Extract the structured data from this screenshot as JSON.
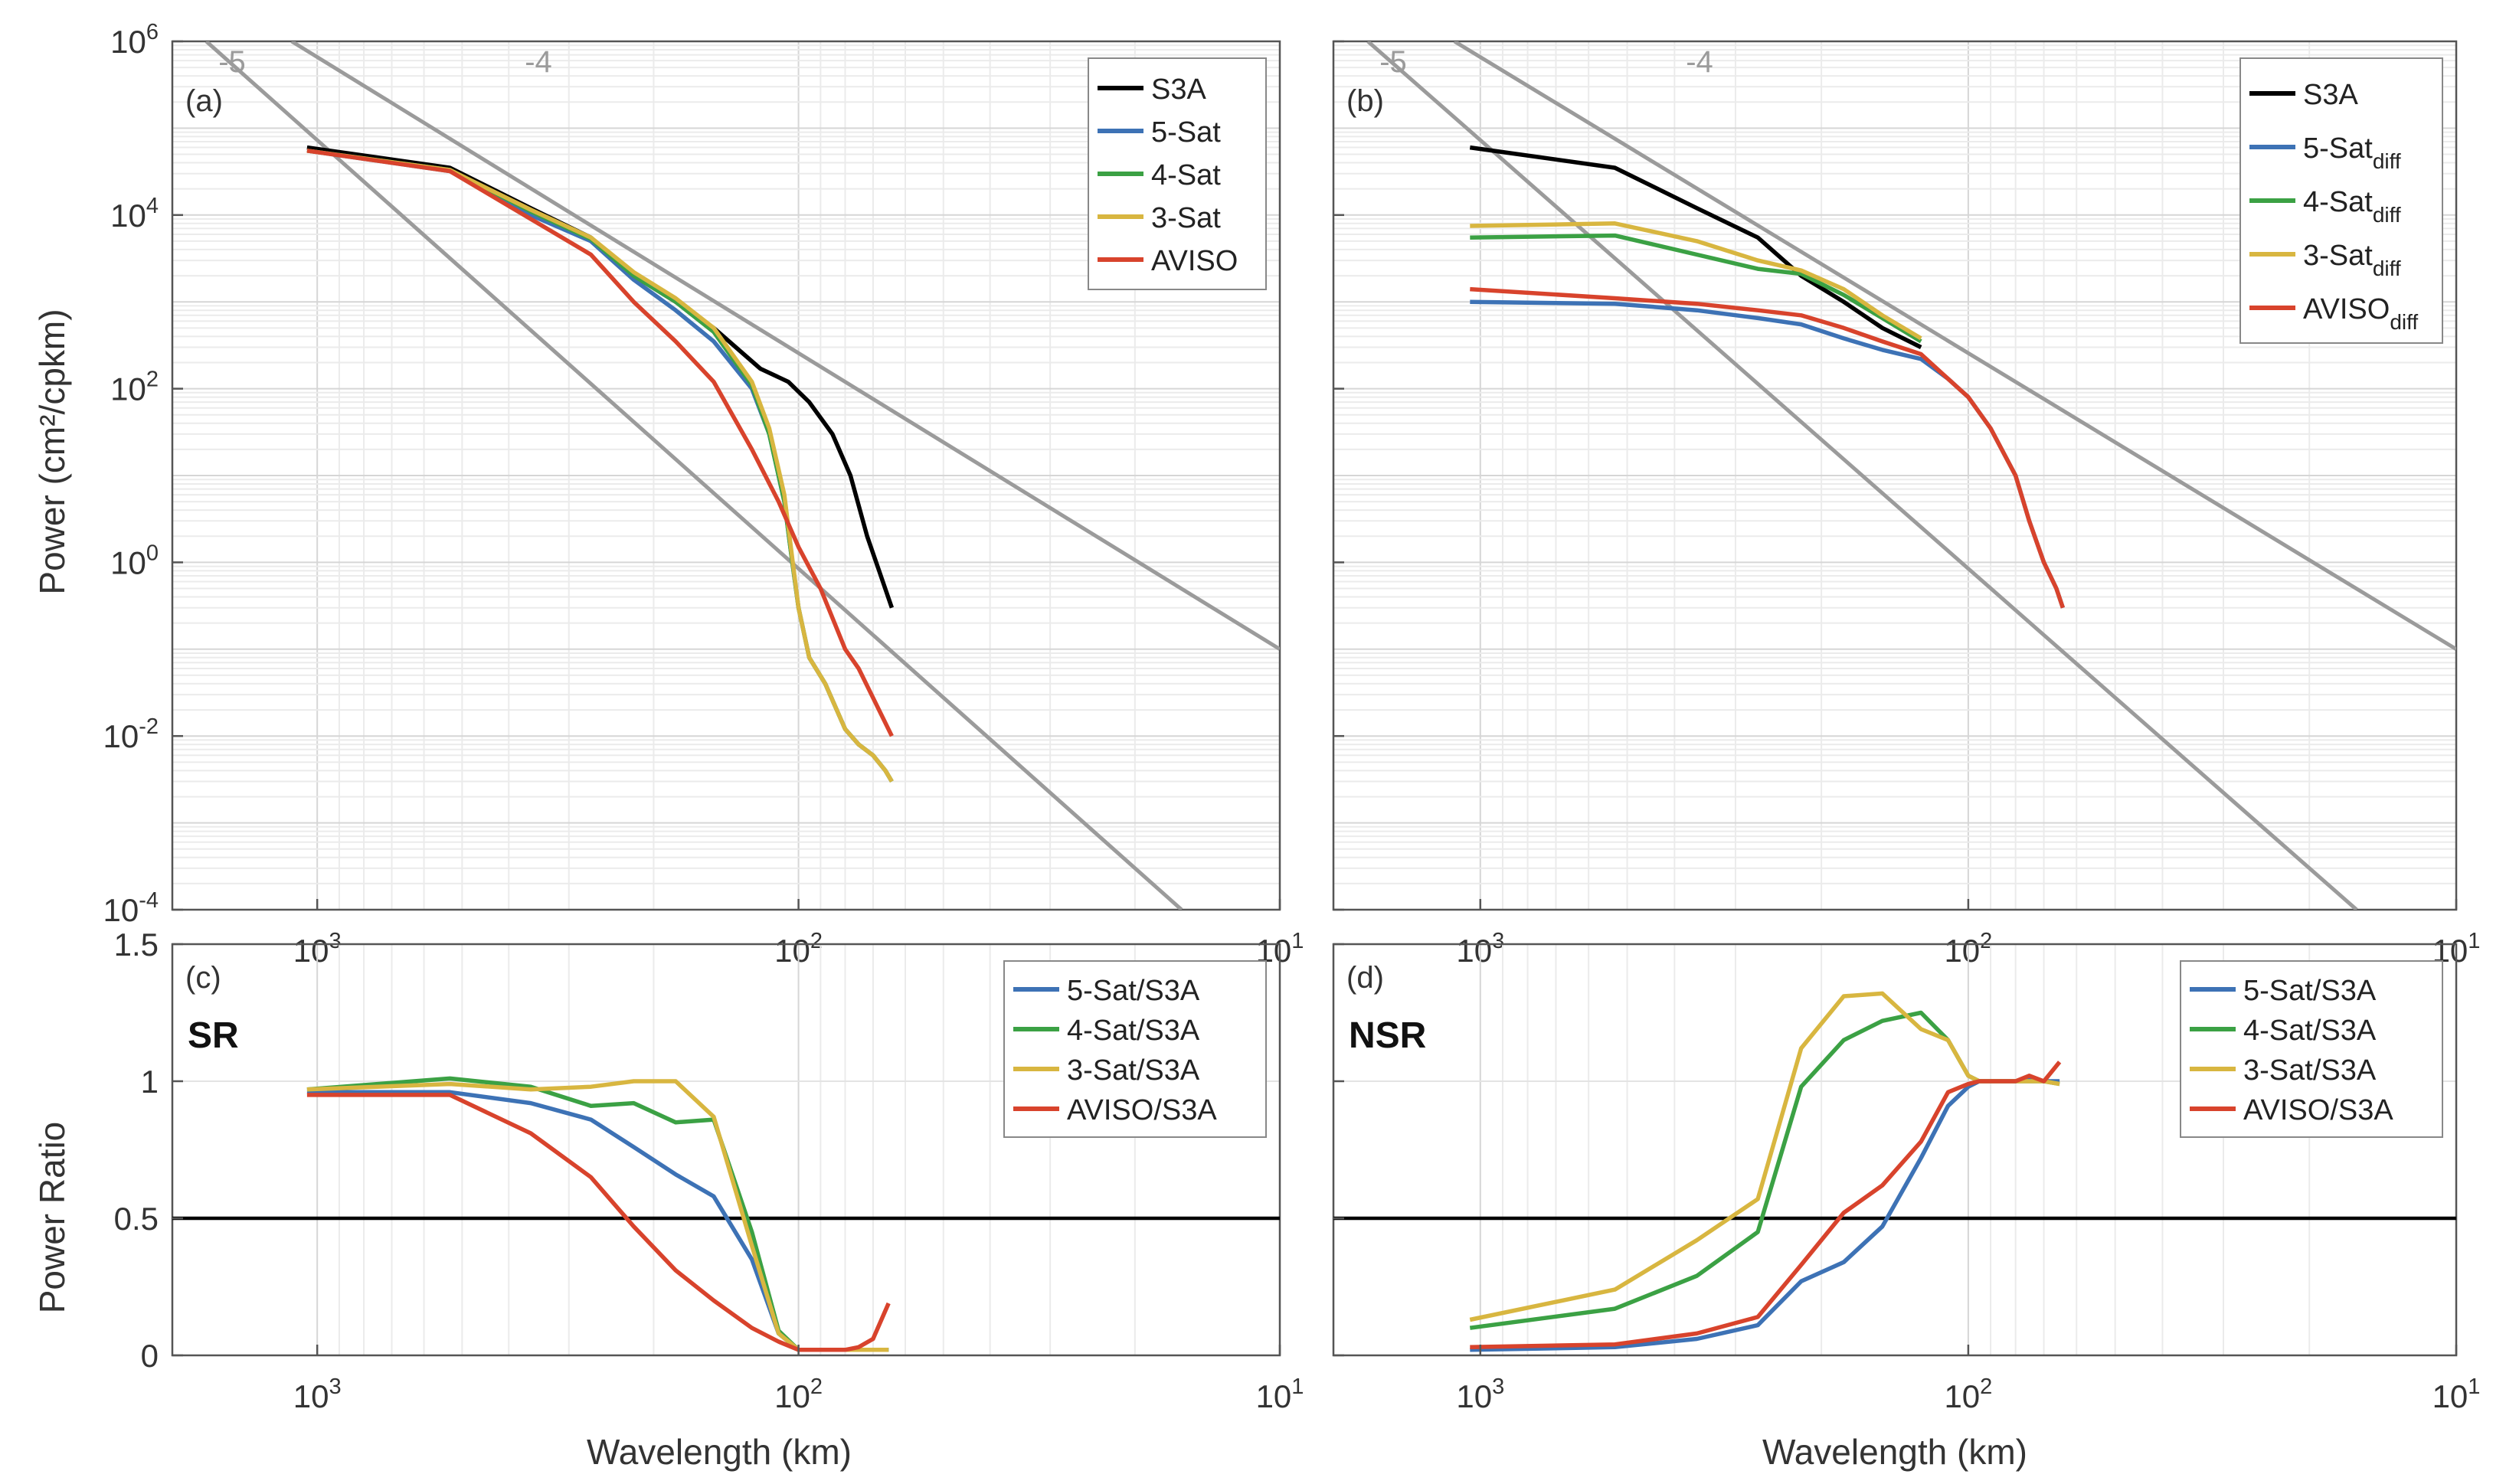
{
  "figure": {
    "ylabel_top": "Power (cm²/cpkm)",
    "ylabel_bottom": "Power Ratio",
    "xlabel": "Wavelength (km)"
  },
  "chart_data": [
    {
      "type": "line",
      "panel": "(a)",
      "title": "",
      "xlabel": "Wavelength (km)",
      "ylabel": "Power (cm^2/cpkm)",
      "xscale": "log-reversed",
      "yscale": "log",
      "xlim": [
        2000,
        10
      ],
      "ylim": [
        0.0001,
        1000000
      ],
      "x_tick_labels": [
        "10^3",
        "10^2",
        "10^1"
      ],
      "y_tick_labels": [
        "10^-4",
        "10^-2",
        "10^0",
        "10^2",
        "10^4",
        "10^6"
      ],
      "grid": true,
      "legend_position": "top-right",
      "reference_lines": [
        {
          "label": "-5",
          "color": "#9b9b9b",
          "points": [
            [
              1700,
              1000000
            ],
            [
              16,
              0.0001
            ]
          ]
        },
        {
          "label": "-4",
          "color": "#9b9b9b",
          "points": [
            [
              1130,
              1000000
            ],
            [
              10,
              0.1
            ]
          ]
        }
      ],
      "series": [
        {
          "name": "S3A",
          "color": "#000000",
          "x": [
            1050,
            530,
            360,
            270,
            220,
            180,
            150,
            135,
            120,
            105,
            95,
            85,
            78,
            72,
            68,
            64
          ],
          "y": [
            60000,
            35000,
            12000,
            5500,
            2000,
            1000,
            500,
            300,
            170,
            120,
            70,
            30,
            10,
            2,
            0.8,
            0.3
          ]
        },
        {
          "name": "5-Sat",
          "color": "#3d72b5",
          "x": [
            1050,
            530,
            360,
            270,
            220,
            180,
            150,
            125,
            115,
            107,
            103,
            100,
            95,
            88,
            80,
            75,
            70,
            66,
            64
          ],
          "y": [
            55000,
            32000,
            10000,
            5000,
            1800,
            800,
            350,
            100,
            30,
            5,
            1,
            0.3,
            0.08,
            0.04,
            0.012,
            0.008,
            0.006,
            0.004,
            0.003
          ]
        },
        {
          "name": "4-Sat",
          "color": "#3ba144",
          "x": [
            1050,
            530,
            360,
            270,
            220,
            180,
            150,
            125,
            115,
            107,
            103,
            100,
            95,
            88,
            80,
            75,
            70,
            66,
            64
          ],
          "y": [
            55000,
            33000,
            11000,
            5300,
            2000,
            1000,
            450,
            110,
            30,
            5,
            1,
            0.3,
            0.08,
            0.04,
            0.012,
            0.008,
            0.006,
            0.004,
            0.003
          ]
        },
        {
          "name": "3-Sat",
          "color": "#d8b640",
          "x": [
            1050,
            530,
            360,
            270,
            220,
            180,
            150,
            125,
            115,
            107,
            103,
            100,
            95,
            88,
            80,
            75,
            70,
            66,
            64
          ],
          "y": [
            55000,
            33000,
            11500,
            5500,
            2200,
            1100,
            500,
            120,
            35,
            6,
            1.1,
            0.3,
            0.08,
            0.04,
            0.012,
            0.008,
            0.006,
            0.004,
            0.003
          ]
        },
        {
          "name": "AVISO",
          "color": "#d8432c",
          "x": [
            1050,
            530,
            360,
            270,
            220,
            180,
            150,
            125,
            110,
            100,
            90,
            80,
            75,
            64
          ],
          "y": [
            55000,
            32000,
            9000,
            3500,
            1000,
            350,
            120,
            20,
            5,
            1.5,
            0.5,
            0.1,
            0.06,
            0.01
          ]
        }
      ]
    },
    {
      "type": "line",
      "panel": "(b)",
      "title": "",
      "xlabel": "Wavelength (km)",
      "ylabel": "Power (cm^2/cpkm)",
      "xscale": "log-reversed",
      "yscale": "log",
      "xlim": [
        2000,
        10
      ],
      "ylim": [
        0.0001,
        1000000
      ],
      "x_tick_labels": [
        "10^3",
        "10^2",
        "10^1"
      ],
      "y_tick_labels": [
        "10^-4",
        "10^-2",
        "10^0",
        "10^2",
        "10^4",
        "10^6"
      ],
      "grid": true,
      "legend_position": "top-right",
      "reference_lines": [
        {
          "label": "-5",
          "color": "#9b9b9b",
          "points": [
            [
              1700,
              1000000
            ],
            [
              16,
              0.0001
            ]
          ]
        },
        {
          "label": "-4",
          "color": "#9b9b9b",
          "points": [
            [
              1130,
              1000000
            ],
            [
              10,
              0.1
            ]
          ]
        }
      ],
      "series": [
        {
          "name": "S3A",
          "color": "#000000",
          "x": [
            1050,
            530,
            360,
            270,
            220,
            180,
            150,
            125
          ],
          "y": [
            60000,
            35000,
            12000,
            5500,
            2000,
            1000,
            500,
            300
          ]
        },
        {
          "name": "5-Sat",
          "subscript": "diff",
          "color": "#3d72b5",
          "x": [
            1050,
            530,
            360,
            270,
            220,
            180,
            150,
            125,
            110,
            100,
            90,
            80,
            75,
            70,
            66,
            64
          ],
          "y": [
            1000,
            950,
            800,
            650,
            550,
            380,
            280,
            220,
            130,
            80,
            35,
            10,
            3,
            1,
            0.5,
            0.3
          ]
        },
        {
          "name": "4-Sat",
          "subscript": "diff",
          "color": "#3ba144",
          "x": [
            1050,
            530,
            360,
            270,
            220,
            180,
            150,
            125
          ],
          "y": [
            5500,
            5800,
            3500,
            2400,
            2100,
            1200,
            650,
            350
          ]
        },
        {
          "name": "3-Sat",
          "subscript": "diff",
          "color": "#d8b640",
          "x": [
            1050,
            530,
            360,
            270,
            220,
            180,
            150,
            125
          ],
          "y": [
            7500,
            8000,
            5000,
            3000,
            2300,
            1400,
            700,
            380
          ]
        },
        {
          "name": "AVISO",
          "subscript": "diff",
          "color": "#d8432c",
          "x": [
            1050,
            530,
            360,
            270,
            220,
            180,
            150,
            125,
            110,
            100,
            90,
            80,
            75,
            70,
            66,
            64
          ],
          "y": [
            1400,
            1100,
            950,
            800,
            700,
            500,
            350,
            250,
            130,
            80,
            35,
            10,
            3,
            1,
            0.5,
            0.3
          ]
        }
      ]
    },
    {
      "type": "line",
      "panel": "(c)",
      "label": "SR",
      "title": "",
      "xlabel": "Wavelength (km)",
      "ylabel": "Power Ratio",
      "xscale": "log-reversed",
      "yscale": "linear",
      "xlim": [
        2000,
        10
      ],
      "ylim": [
        0,
        1.5
      ],
      "x_tick_labels": [
        "10^3",
        "10^2",
        "10^1"
      ],
      "y_tick_labels": [
        "0",
        "0.5",
        "1",
        "1.5"
      ],
      "threshold": 0.5,
      "grid": true,
      "legend_position": "top-right",
      "series": [
        {
          "name": "5-Sat/S3A",
          "color": "#3d72b5",
          "x": [
            1050,
            530,
            360,
            270,
            220,
            180,
            150,
            125,
            110,
            100,
            95,
            90,
            80,
            75,
            70,
            65
          ],
          "y": [
            0.96,
            0.96,
            0.92,
            0.86,
            0.76,
            0.66,
            0.58,
            0.35,
            0.08,
            0.02,
            0.02,
            0.02,
            0.02,
            0.02,
            0.02,
            0.02
          ]
        },
        {
          "name": "4-Sat/S3A",
          "color": "#3ba144",
          "x": [
            1050,
            530,
            360,
            270,
            220,
            180,
            150,
            125,
            110,
            100,
            95,
            90,
            80,
            75,
            70,
            65
          ],
          "y": [
            0.97,
            1.01,
            0.98,
            0.91,
            0.92,
            0.85,
            0.86,
            0.45,
            0.09,
            0.02,
            0.02,
            0.02,
            0.02,
            0.02,
            0.02,
            0.02
          ]
        },
        {
          "name": "3-Sat/S3A",
          "color": "#d8b640",
          "x": [
            1050,
            530,
            360,
            270,
            220,
            180,
            150,
            125,
            110,
            100,
            95,
            90,
            80,
            75,
            70,
            65
          ],
          "y": [
            0.97,
            0.99,
            0.97,
            0.98,
            1.0,
            1.0,
            0.87,
            0.4,
            0.08,
            0.02,
            0.02,
            0.02,
            0.02,
            0.02,
            0.02,
            0.02
          ]
        },
        {
          "name": "AVISO/S3A",
          "color": "#d8432c",
          "x": [
            1050,
            530,
            360,
            270,
            220,
            180,
            150,
            125,
            110,
            100,
            95,
            90,
            80,
            75,
            70,
            65
          ],
          "y": [
            0.95,
            0.95,
            0.81,
            0.65,
            0.47,
            0.31,
            0.2,
            0.1,
            0.05,
            0.02,
            0.02,
            0.02,
            0.02,
            0.03,
            0.06,
            0.19
          ]
        }
      ]
    },
    {
      "type": "line",
      "panel": "(d)",
      "label": "NSR",
      "title": "",
      "xlabel": "Wavelength (km)",
      "ylabel": "Power Ratio",
      "xscale": "log-reversed",
      "yscale": "linear",
      "xlim": [
        2000,
        10
      ],
      "ylim": [
        0,
        1.5
      ],
      "x_tick_labels": [
        "10^3",
        "10^2",
        "10^1"
      ],
      "y_tick_labels": [
        "0",
        "0.5",
        "1",
        "1.5"
      ],
      "threshold": 0.5,
      "grid": true,
      "legend_position": "top-right",
      "series": [
        {
          "name": "5-Sat/S3A",
          "color": "#3d72b5",
          "x": [
            1050,
            530,
            360,
            270,
            220,
            180,
            150,
            125,
            110,
            100,
            95,
            90,
            80,
            75,
            70,
            65
          ],
          "y": [
            0.02,
            0.03,
            0.06,
            0.11,
            0.27,
            0.34,
            0.47,
            0.72,
            0.91,
            0.98,
            1.0,
            1.0,
            1.0,
            1.01,
            1.0,
            1.0
          ]
        },
        {
          "name": "4-Sat/S3A",
          "color": "#3ba144",
          "x": [
            1050,
            530,
            360,
            270,
            220,
            180,
            150,
            125,
            110,
            100,
            95,
            90,
            80,
            75,
            70,
            65
          ],
          "y": [
            0.1,
            0.17,
            0.29,
            0.45,
            0.98,
            1.15,
            1.22,
            1.25,
            1.15,
            1.02,
            1.0,
            1.0,
            1.0,
            1.0,
            1.0,
            0.99
          ]
        },
        {
          "name": "3-Sat/S3A",
          "color": "#d8b640",
          "x": [
            1050,
            530,
            360,
            270,
            220,
            180,
            150,
            125,
            110,
            100,
            95,
            90,
            80,
            75,
            70,
            65
          ],
          "y": [
            0.13,
            0.24,
            0.42,
            0.57,
            1.12,
            1.31,
            1.32,
            1.19,
            1.15,
            1.02,
            1.0,
            1.0,
            1.0,
            1.0,
            1.0,
            0.99
          ]
        },
        {
          "name": "AVISO/S3A",
          "color": "#d8432c",
          "x": [
            1050,
            530,
            360,
            270,
            220,
            180,
            150,
            125,
            110,
            100,
            95,
            90,
            80,
            75,
            70,
            65
          ],
          "y": [
            0.03,
            0.04,
            0.08,
            0.14,
            0.33,
            0.52,
            0.62,
            0.78,
            0.96,
            0.99,
            1.0,
            1.0,
            1.0,
            1.02,
            1.0,
            1.07
          ]
        }
      ]
    }
  ]
}
